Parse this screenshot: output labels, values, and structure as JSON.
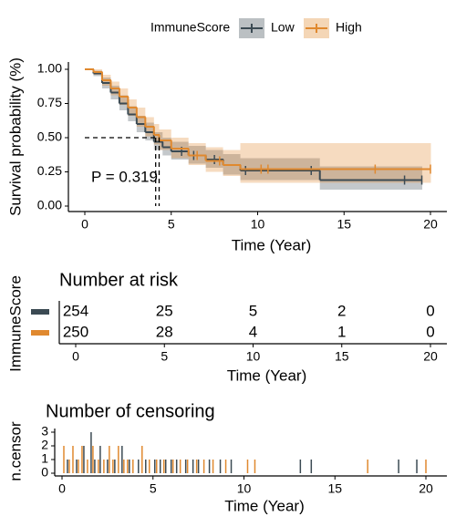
{
  "chart_data": [
    {
      "type": "step",
      "legend_title": "ImmuneScore",
      "ylabel": "Survival probability (%)",
      "xlabel": "Time (Year)",
      "annotation": "P = 0.319",
      "xlim": [
        0,
        20
      ],
      "ylim": [
        0,
        1
      ],
      "xticks": [
        0,
        5,
        10,
        15,
        20
      ],
      "yticks": [
        {
          "value": 0,
          "label": "0.00"
        },
        {
          "value": 0.25,
          "label": "0.25"
        },
        {
          "value": 0.5,
          "label": "0.50"
        },
        {
          "value": 0.75,
          "label": "0.75"
        },
        {
          "value": 1,
          "label": "1.00"
        }
      ],
      "median_y": 0.5,
      "medians": [
        4.1,
        4.3
      ],
      "series": [
        {
          "name": "Low",
          "color": "#3b4a53",
          "x": [
            0,
            0.5,
            1,
            1.5,
            2,
            2.5,
            3,
            3.5,
            4,
            4.5,
            5,
            6,
            7,
            8,
            9,
            13.6,
            19.5
          ],
          "values": [
            1,
            0.97,
            0.9,
            0.83,
            0.75,
            0.67,
            0.6,
            0.54,
            0.47,
            0.43,
            0.4,
            0.37,
            0.34,
            0.3,
            0.26,
            0.19,
            0.19
          ],
          "lower": [
            1,
            0.95,
            0.86,
            0.78,
            0.7,
            0.62,
            0.54,
            0.48,
            0.41,
            0.37,
            0.34,
            0.31,
            0.28,
            0.23,
            0.19,
            0.12,
            0.12
          ],
          "upper": [
            1,
            0.99,
            0.94,
            0.88,
            0.81,
            0.73,
            0.66,
            0.61,
            0.54,
            0.5,
            0.47,
            0.44,
            0.41,
            0.38,
            0.35,
            0.29,
            0.29
          ],
          "censor": [
            5.6,
            6.3,
            7.5,
            9.3,
            13.1,
            18.5,
            19.5
          ]
        },
        {
          "name": "High",
          "color": "#e0892f",
          "x": [
            0,
            0.5,
            1,
            1.5,
            2,
            2.5,
            3,
            3.5,
            4,
            4.3,
            5,
            6,
            7,
            8,
            9,
            20
          ],
          "values": [
            1,
            0.98,
            0.92,
            0.86,
            0.8,
            0.72,
            0.65,
            0.58,
            0.52,
            0.48,
            0.42,
            0.37,
            0.33,
            0.3,
            0.27,
            0.27
          ],
          "lower": [
            1,
            0.96,
            0.88,
            0.81,
            0.74,
            0.66,
            0.58,
            0.51,
            0.45,
            0.41,
            0.35,
            0.3,
            0.25,
            0.22,
            0.17,
            0.17
          ],
          "upper": [
            1,
            1,
            0.96,
            0.91,
            0.86,
            0.78,
            0.72,
            0.65,
            0.6,
            0.56,
            0.5,
            0.46,
            0.43,
            0.41,
            0.46,
            0.46
          ],
          "censor": [
            6.5,
            7.8,
            10.2,
            10.6,
            16.8,
            20
          ]
        }
      ]
    },
    {
      "type": "risk_table",
      "title": "Number at risk",
      "ylabel": "ImmuneScore",
      "xlabel": "Time (Year)",
      "xlim": [
        0,
        20
      ],
      "xticks": [
        0,
        5,
        10,
        15,
        20
      ],
      "series": [
        {
          "name": "Low",
          "color": "#3b4a53",
          "x": [
            0,
            5,
            10,
            15,
            20
          ],
          "values": [
            254,
            25,
            5,
            2,
            0
          ]
        },
        {
          "name": "High",
          "color": "#e0892f",
          "x": [
            0,
            5,
            10,
            15,
            20
          ],
          "values": [
            250,
            28,
            4,
            1,
            0
          ]
        }
      ]
    },
    {
      "type": "censor_bars",
      "title": "Number of censoring",
      "ylabel": "n.censor",
      "xlabel": "Time (Year)",
      "xlim": [
        0,
        20
      ],
      "ylim": [
        0,
        3
      ],
      "xticks": [
        0,
        5,
        10,
        15,
        20
      ],
      "yticks": [
        0,
        1,
        2,
        3
      ],
      "series": [
        {
          "name": "Low",
          "color": "#3b4a53",
          "x": [
            0.3,
            0.8,
            1.2,
            1.6,
            1.8,
            2.1,
            2.5,
            2.9,
            3.3,
            3.7,
            4.2,
            4.6,
            5.1,
            5.4,
            5.7,
            6.0,
            6.3,
            6.8,
            7.2,
            7.5,
            8.1,
            8.7,
            9.3,
            13.1,
            13.7,
            18.5,
            19.5
          ],
          "values": [
            1,
            1,
            2,
            3,
            1,
            2,
            1,
            1,
            2,
            1,
            1,
            1,
            1,
            1,
            1,
            1,
            1,
            1,
            1,
            1,
            1,
            1,
            1,
            1,
            1,
            1,
            1
          ]
        },
        {
          "name": "High",
          "color": "#e0892f",
          "x": [
            0.1,
            0.4,
            0.6,
            0.9,
            1.1,
            1.4,
            1.7,
            2.0,
            2.3,
            2.6,
            2.8,
            3.1,
            3.4,
            3.6,
            3.9,
            4.4,
            4.8,
            5.2,
            5.6,
            6.1,
            6.5,
            6.9,
            7.4,
            7.8,
            8.3,
            9.0,
            10.2,
            10.6,
            16.8,
            20
          ],
          "values": [
            2,
            1,
            2,
            1,
            2,
            1,
            2,
            1,
            1,
            2,
            1,
            2,
            1,
            1,
            1,
            2,
            1,
            1,
            1,
            1,
            1,
            1,
            1,
            1,
            1,
            1,
            1,
            1,
            1,
            1
          ]
        }
      ]
    }
  ]
}
